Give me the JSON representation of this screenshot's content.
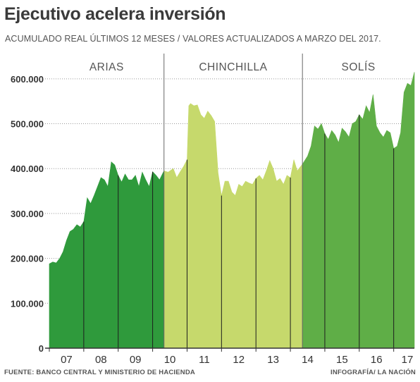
{
  "title": "Ejecutivo acelera inversión",
  "subtitle": "ACUMULADO REAL ÚLTIMOS 12 MESES  /  VALORES ACTUALIZADOS A MARZO DEL 2017.",
  "source": "FUENTE: BANCO CENTRAL Y MINISTERIO DE HACIENDA",
  "credit": "INFOGRAFÍA/ LA NACIÓN",
  "chart_data": {
    "type": "area",
    "ylim": [
      0,
      650000
    ],
    "yticks": [
      0,
      100000,
      200000,
      300000,
      400000,
      500000,
      600000
    ],
    "ytick_labels": [
      "0",
      "100.000",
      "200.000",
      "300.000",
      "400.000",
      "500.000",
      "600.000"
    ],
    "xlim": [
      2007.0,
      2017.6
    ],
    "xticks": [
      2007,
      2008,
      2009,
      2010,
      2011,
      2012,
      2013,
      2014,
      2015,
      2016,
      2017
    ],
    "xtick_labels": [
      "07",
      "08",
      "09",
      "10",
      "11",
      "12",
      "13",
      "14",
      "15",
      "16",
      "17"
    ],
    "grid": "horizontal dotted",
    "periods": [
      {
        "name": "ARIAS",
        "start": 2007.0,
        "end": 2010.33,
        "color": "#2f9a3c"
      },
      {
        "name": "CHINCHILLA",
        "start": 2010.33,
        "end": 2014.35,
        "color": "#c6d96c"
      },
      {
        "name": "SOLÍS",
        "start": 2014.35,
        "end": 2017.6,
        "color": "#5fae47"
      }
    ],
    "series": [
      {
        "x": [
          2007.0,
          2007.1,
          2007.2,
          2007.3,
          2007.4,
          2007.5,
          2007.6,
          2007.7,
          2007.8,
          2007.9,
          2008.0,
          2008.1,
          2008.2,
          2008.3,
          2008.4,
          2008.5,
          2008.6,
          2008.7,
          2008.8,
          2008.9,
          2009.0,
          2009.1,
          2009.2,
          2009.3,
          2009.4,
          2009.5,
          2009.6,
          2009.7,
          2009.8,
          2009.9,
          2010.0,
          2010.1,
          2010.2,
          2010.33,
          2010.45,
          2010.6,
          2010.7,
          2010.8,
          2010.9,
          2011.0,
          2011.05,
          2011.1,
          2011.2,
          2011.3,
          2011.4,
          2011.5,
          2011.6,
          2011.7,
          2011.8,
          2011.9,
          2012.0,
          2012.1,
          2012.2,
          2012.3,
          2012.4,
          2012.5,
          2012.6,
          2012.7,
          2012.8,
          2012.9,
          2013.0,
          2013.1,
          2013.2,
          2013.3,
          2013.4,
          2013.5,
          2013.6,
          2013.7,
          2013.8,
          2013.9,
          2014.0,
          2014.1,
          2014.2,
          2014.35,
          2014.5,
          2014.6,
          2014.7,
          2014.8,
          2014.9,
          2015.0,
          2015.1,
          2015.2,
          2015.3,
          2015.4,
          2015.5,
          2015.6,
          2015.7,
          2015.8,
          2015.9,
          2016.0,
          2016.1,
          2016.2,
          2016.3,
          2016.4,
          2016.5,
          2016.6,
          2016.7,
          2016.8,
          2016.9,
          2017.0,
          2017.1,
          2017.2,
          2017.3,
          2017.4,
          2017.5,
          2017.6
        ],
        "values": [
          188000,
          192000,
          190000,
          200000,
          215000,
          240000,
          260000,
          265000,
          275000,
          270000,
          282000,
          335000,
          322000,
          340000,
          360000,
          380000,
          375000,
          360000,
          415000,
          408000,
          385000,
          370000,
          388000,
          375000,
          375000,
          385000,
          360000,
          392000,
          375000,
          360000,
          393000,
          385000,
          375000,
          395000,
          392000,
          400000,
          380000,
          393000,
          405000,
          420000,
          540000,
          545000,
          540000,
          542000,
          520000,
          512000,
          528000,
          518000,
          505000,
          390000,
          340000,
          372000,
          372000,
          348000,
          340000,
          365000,
          360000,
          372000,
          368000,
          365000,
          378000,
          385000,
          375000,
          395000,
          418000,
          400000,
          372000,
          378000,
          365000,
          385000,
          380000,
          420000,
          395000,
          410000,
          428000,
          450000,
          495000,
          488000,
          500000,
          478000,
          465000,
          485000,
          475000,
          458000,
          490000,
          482000,
          470000,
          500000,
          505000,
          520000,
          510000,
          540000,
          525000,
          565000,
          495000,
          480000,
          470000,
          485000,
          480000,
          445000,
          450000,
          480000,
          570000,
          590000,
          585000,
          615000
        ]
      }
    ]
  }
}
